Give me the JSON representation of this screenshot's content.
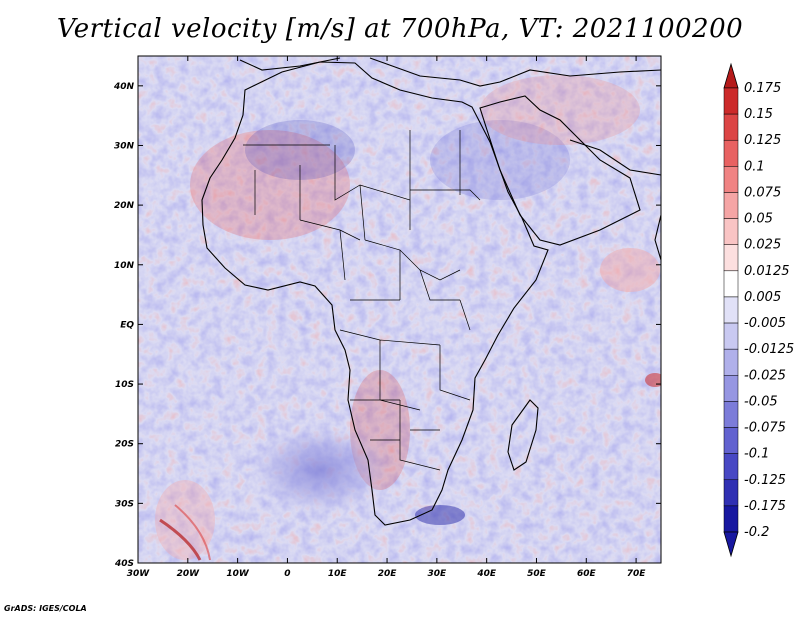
{
  "title": "Vertical velocity [m/s] at 700hPa, VT: 2021100200",
  "credit": "GrADS: IGES/COLA",
  "map": {
    "lat_labels": [
      "40N",
      "30N",
      "20N",
      "10N",
      "EQ",
      "10S",
      "20S",
      "30S",
      "40S"
    ],
    "lon_labels": [
      "30W",
      "20W",
      "10W",
      "0",
      "10E",
      "20E",
      "30E",
      "40E",
      "50E",
      "60E",
      "70E"
    ],
    "lat_range": [
      -40,
      45
    ],
    "lon_range": [
      -30,
      75
    ],
    "colors": {
      "ocean_bg": "#dcdcf3",
      "land_bg": "#e3dff0",
      "border": "#000000"
    }
  },
  "colorbar": {
    "labels": [
      "0.175",
      "0.15",
      "0.125",
      "0.1",
      "0.075",
      "0.05",
      "0.025",
      "0.0125",
      "0.005",
      "-0.005",
      "-0.0125",
      "-0.025",
      "-0.05",
      "-0.075",
      "-0.1",
      "-0.125",
      "-0.175",
      "-0.2"
    ],
    "colors": [
      "#b51a1a",
      "#cc2a2a",
      "#dc4545",
      "#e86262",
      "#f08383",
      "#f5a5a5",
      "#f9c4c4",
      "#fcdfdf",
      "#ffffff",
      "#e1e1f7",
      "#c9c9f1",
      "#b0b0ea",
      "#9696e2",
      "#7c7cd9",
      "#6262d0",
      "#4848c4",
      "#3030b3",
      "#1818a0"
    ]
  }
}
